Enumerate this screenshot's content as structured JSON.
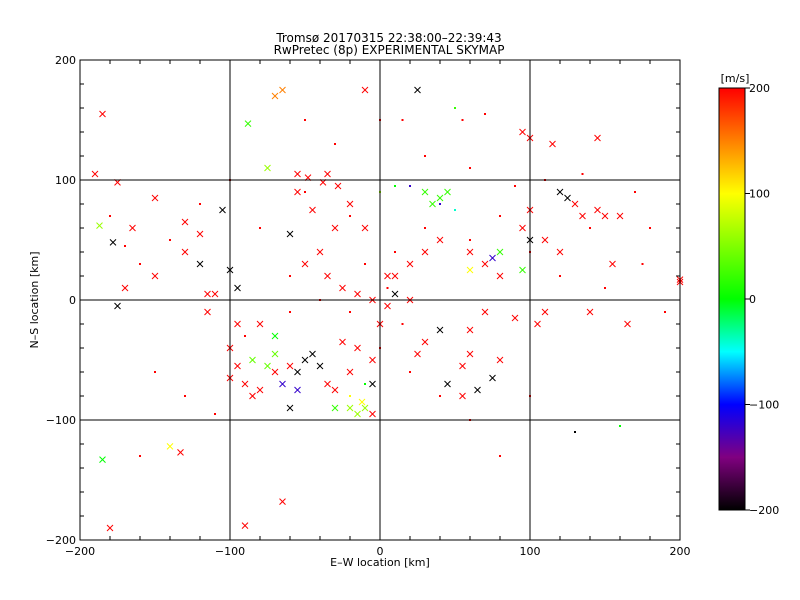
{
  "chart_data": {
    "type": "scatter",
    "title": "Tromsø 20170315 22:38:00–22:39:43",
    "subtitle": "RwPretec (8p) EXPERIMENTAL SKYMAP",
    "xlabel": "E–W location [km]",
    "ylabel": "N–S location [km]",
    "xlim": [
      -200,
      200
    ],
    "ylim": [
      -200,
      200
    ],
    "x_ticks": [
      "−200",
      "−100",
      "0",
      "100",
      "200"
    ],
    "y_ticks": [
      "200",
      "100",
      "0",
      "−100",
      "−200"
    ],
    "grid": true,
    "colorbar": {
      "label": "[m/s]",
      "range": [
        -200,
        200
      ],
      "ticks": [
        "200",
        "100",
        "0",
        "−100",
        "−200"
      ]
    },
    "series": [
      {
        "marker": "cross",
        "points": [
          [
            -185,
            155,
            200
          ],
          [
            -190,
            105,
            200
          ],
          [
            -175,
            98,
            200
          ],
          [
            -165,
            60,
            200
          ],
          [
            -150,
            85,
            200
          ],
          [
            -130,
            65,
            200
          ],
          [
            -120,
            55,
            200
          ],
          [
            -105,
            75,
            -200
          ],
          [
            -100,
            25,
            -200
          ],
          [
            -95,
            10,
            -200
          ],
          [
            -115,
            5,
            200
          ],
          [
            -178,
            48,
            -200
          ],
          [
            -187,
            62,
            60
          ],
          [
            -70,
            170,
            150
          ],
          [
            -65,
            175,
            150
          ],
          [
            -88,
            147,
            20
          ],
          [
            -75,
            110,
            60
          ],
          [
            -55,
            105,
            200
          ],
          [
            -55,
            90,
            200
          ],
          [
            -45,
            75,
            200
          ],
          [
            -30,
            60,
            200
          ],
          [
            -20,
            80,
            200
          ],
          [
            -10,
            60,
            200
          ],
          [
            -40,
            40,
            200
          ],
          [
            -50,
            30,
            200
          ],
          [
            -35,
            20,
            200
          ],
          [
            -25,
            10,
            200
          ],
          [
            -15,
            5,
            200
          ],
          [
            -5,
            0,
            200
          ],
          [
            5,
            -5,
            200
          ],
          [
            10,
            20,
            200
          ],
          [
            20,
            30,
            200
          ],
          [
            30,
            40,
            200
          ],
          [
            40,
            50,
            200
          ],
          [
            60,
            40,
            200
          ],
          [
            70,
            30,
            200
          ],
          [
            80,
            20,
            200
          ],
          [
            95,
            60,
            200
          ],
          [
            110,
            50,
            200
          ],
          [
            120,
            40,
            200
          ],
          [
            130,
            80,
            200
          ],
          [
            135,
            70,
            200
          ],
          [
            145,
            75,
            200
          ],
          [
            150,
            70,
            200
          ],
          [
            160,
            70,
            200
          ],
          [
            155,
            30,
            200
          ],
          [
            200,
            15,
            200
          ],
          [
            125,
            85,
            -200
          ],
          [
            120,
            90,
            -200
          ],
          [
            100,
            50,
            -200
          ],
          [
            25,
            175,
            -200
          ],
          [
            -10,
            175,
            200
          ],
          [
            95,
            140,
            200
          ],
          [
            100,
            135,
            200
          ],
          [
            145,
            135,
            200
          ],
          [
            115,
            130,
            200
          ],
          [
            -85,
            -80,
            200
          ],
          [
            -90,
            -70,
            200
          ],
          [
            -100,
            -65,
            200
          ],
          [
            -95,
            -55,
            200
          ],
          [
            -80,
            -75,
            200
          ],
          [
            -70,
            -60,
            200
          ],
          [
            -60,
            -55,
            200
          ],
          [
            -50,
            -50,
            -200
          ],
          [
            -45,
            -45,
            -200
          ],
          [
            -55,
            -60,
            -200
          ],
          [
            -40,
            -55,
            -200
          ],
          [
            -75,
            -55,
            40
          ],
          [
            -85,
            -50,
            40
          ],
          [
            -70,
            -45,
            40
          ],
          [
            -35,
            -70,
            200
          ],
          [
            -30,
            -75,
            200
          ],
          [
            -20,
            -60,
            200
          ],
          [
            -15,
            -40,
            200
          ],
          [
            -25,
            -35,
            200
          ],
          [
            -10,
            -90,
            60
          ],
          [
            -15,
            -95,
            60
          ],
          [
            -20,
            -90,
            60
          ],
          [
            -12,
            -85,
            100
          ],
          [
            -5,
            -95,
            200
          ],
          [
            -5,
            -70,
            -200
          ],
          [
            -60,
            -90,
            -200
          ],
          [
            -55,
            -75,
            -120
          ],
          [
            -65,
            -70,
            -120
          ],
          [
            -30,
            -90,
            20
          ],
          [
            -80,
            -20,
            200
          ],
          [
            -100,
            -40,
            200
          ],
          [
            -70,
            -30,
            0
          ],
          [
            25,
            -45,
            200
          ],
          [
            30,
            -35,
            200
          ],
          [
            60,
            -45,
            200
          ],
          [
            55,
            -55,
            200
          ],
          [
            80,
            -50,
            200
          ],
          [
            65,
            -75,
            -200
          ],
          [
            75,
            -65,
            -200
          ],
          [
            55,
            -80,
            200
          ],
          [
            45,
            -70,
            -200
          ],
          [
            60,
            -25,
            200
          ],
          [
            70,
            -10,
            200
          ],
          [
            90,
            -15,
            200
          ],
          [
            105,
            -20,
            200
          ],
          [
            110,
            -10,
            200
          ],
          [
            40,
            -25,
            -200
          ],
          [
            0,
            -20,
            200
          ],
          [
            -5,
            -50,
            200
          ],
          [
            -140,
            -122,
            100
          ],
          [
            -133,
            -127,
            200
          ],
          [
            -185,
            -133,
            0
          ],
          [
            -180,
            -190,
            200
          ],
          [
            -65,
            -168,
            200
          ],
          [
            -90,
            -188,
            200
          ],
          [
            200,
            17,
            200
          ],
          [
            100,
            75,
            200
          ],
          [
            -35,
            105,
            200
          ],
          [
            -38,
            98,
            200
          ],
          [
            -28,
            95,
            200
          ],
          [
            -48,
            102,
            200
          ],
          [
            -60,
            55,
            -200
          ],
          [
            5,
            20,
            200
          ],
          [
            40,
            85,
            20
          ],
          [
            45,
            90,
            20
          ],
          [
            30,
            90,
            20
          ],
          [
            35,
            80,
            20
          ],
          [
            60,
            25,
            100
          ],
          [
            75,
            35,
            -120
          ],
          [
            80,
            40,
            20
          ],
          [
            95,
            25,
            20
          ],
          [
            20,
            0,
            200
          ],
          [
            10,
            5,
            -200
          ],
          [
            -115,
            -10,
            200
          ],
          [
            -95,
            -20,
            200
          ],
          [
            -110,
            5,
            200
          ],
          [
            -120,
            30,
            -200
          ],
          [
            140,
            -10,
            200
          ],
          [
            165,
            -20,
            200
          ],
          [
            -130,
            40,
            200
          ],
          [
            -150,
            20,
            200
          ],
          [
            -170,
            10,
            200
          ],
          [
            -175,
            -5,
            -200
          ]
        ]
      },
      {
        "marker": "dot",
        "points": [
          [
            -100,
            100,
            200
          ],
          [
            -50,
            90,
            200
          ],
          [
            -20,
            70,
            200
          ],
          [
            0,
            90,
            60
          ],
          [
            10,
            95,
            0
          ],
          [
            20,
            95,
            -120
          ],
          [
            40,
            80,
            -120
          ],
          [
            50,
            75,
            -40
          ],
          [
            30,
            60,
            200
          ],
          [
            60,
            50,
            200
          ],
          [
            80,
            70,
            200
          ],
          [
            100,
            40,
            200
          ],
          [
            120,
            20,
            200
          ],
          [
            140,
            60,
            200
          ],
          [
            -60,
            20,
            200
          ],
          [
            -40,
            0,
            200
          ],
          [
            -20,
            -10,
            200
          ],
          [
            0,
            -40,
            200
          ],
          [
            20,
            -60,
            200
          ],
          [
            40,
            -80,
            200
          ],
          [
            60,
            -100,
            200
          ],
          [
            -80,
            60,
            200
          ],
          [
            -120,
            80,
            200
          ],
          [
            -140,
            50,
            200
          ],
          [
            -160,
            30,
            200
          ],
          [
            -30,
            130,
            200
          ],
          [
            0,
            150,
            200
          ],
          [
            30,
            120,
            200
          ],
          [
            60,
            110,
            200
          ],
          [
            90,
            95,
            200
          ],
          [
            -90,
            -30,
            200
          ],
          [
            -60,
            -10,
            200
          ],
          [
            10,
            40,
            200
          ],
          [
            -10,
            30,
            200
          ],
          [
            5,
            10,
            200
          ],
          [
            15,
            -20,
            200
          ],
          [
            -20,
            -80,
            100
          ],
          [
            -10,
            -70,
            0
          ],
          [
            100,
            -80,
            200
          ],
          [
            130,
            -110,
            -200
          ],
          [
            160,
            -105,
            0
          ],
          [
            80,
            -130,
            200
          ],
          [
            -160,
            -130,
            200
          ],
          [
            -50,
            150,
            200
          ],
          [
            70,
            155,
            200
          ],
          [
            15,
            150,
            200
          ],
          [
            50,
            160,
            20
          ],
          [
            55,
            150,
            200
          ],
          [
            110,
            100,
            200
          ],
          [
            135,
            105,
            200
          ],
          [
            170,
            90,
            200
          ],
          [
            180,
            60,
            200
          ],
          [
            175,
            30,
            200
          ],
          [
            190,
            -10,
            200
          ],
          [
            150,
            10,
            200
          ],
          [
            -180,
            70,
            200
          ],
          [
            -170,
            45,
            200
          ],
          [
            -150,
            -60,
            200
          ],
          [
            -130,
            -80,
            200
          ],
          [
            -110,
            -95,
            200
          ]
        ]
      }
    ]
  }
}
